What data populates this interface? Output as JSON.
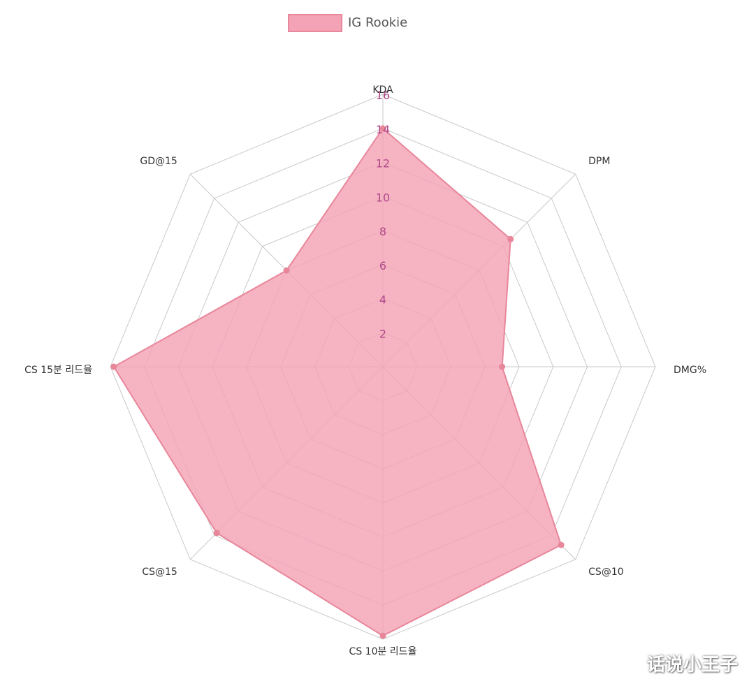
{
  "chart_data": {
    "type": "radar",
    "categories": [
      "KDA",
      "DPM",
      "DMG%",
      "CS@10",
      "CS 10분 리드율",
      "CS@15",
      "CS 15분 리드율",
      "GD@15"
    ],
    "series": [
      {
        "name": "IG Rookie",
        "values": [
          14,
          10.6,
          7,
          14.8,
          15.8,
          13.8,
          15.8,
          8
        ],
        "color": "#e8869a",
        "fill": "#f4a3b6"
      }
    ],
    "r_range": [
      0,
      16
    ],
    "r_ticks": [
      "2",
      "4",
      "6",
      "8",
      "10",
      "12",
      "14",
      "16"
    ],
    "grid": true,
    "legend_position": "top",
    "tick_color": "#b0488a"
  },
  "watermark": "话说小王子"
}
